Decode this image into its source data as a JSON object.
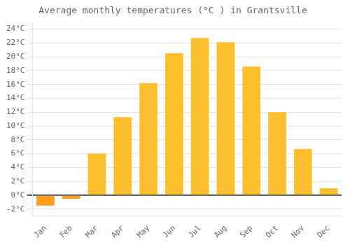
{
  "chart_data": {
    "type": "bar",
    "title": "Average monthly temperatures (°C ) in Grantsville",
    "categories": [
      "Jan",
      "Feb",
      "Mar",
      "Apr",
      "May",
      "Jun",
      "Jul",
      "Aug",
      "Sep",
      "Oct",
      "Nov",
      "Dec"
    ],
    "values": [
      -1.5,
      -0.5,
      6.0,
      11.3,
      16.2,
      20.5,
      22.7,
      22.1,
      18.6,
      12.0,
      6.7,
      1.0
    ],
    "colors": [
      "#FFA020",
      "#FFA020",
      "#FFC030",
      "#FFC030",
      "#FFC030",
      "#FFC030",
      "#FFC030",
      "#FFC030",
      "#FFC030",
      "#FFC030",
      "#FFC030",
      "#FFC030"
    ],
    "ylim": [
      -3,
      25
    ],
    "yticks": [
      {
        "value": -2,
        "label": "-2°C"
      },
      {
        "value": 0,
        "label": "0°C"
      },
      {
        "value": 2,
        "label": "2°C"
      },
      {
        "value": 4,
        "label": "4°C"
      },
      {
        "value": 6,
        "label": "6°C"
      },
      {
        "value": 8,
        "label": "8°C"
      },
      {
        "value": 10,
        "label": "10°C"
      },
      {
        "value": 12,
        "label": "12°C"
      },
      {
        "value": 14,
        "label": "14°C"
      },
      {
        "value": 16,
        "label": "16°C"
      },
      {
        "value": 18,
        "label": "18°C"
      },
      {
        "value": 20,
        "label": "20°C"
      },
      {
        "value": 22,
        "label": "22°C"
      },
      {
        "value": 24,
        "label": "24°C"
      }
    ],
    "grid": true
  }
}
